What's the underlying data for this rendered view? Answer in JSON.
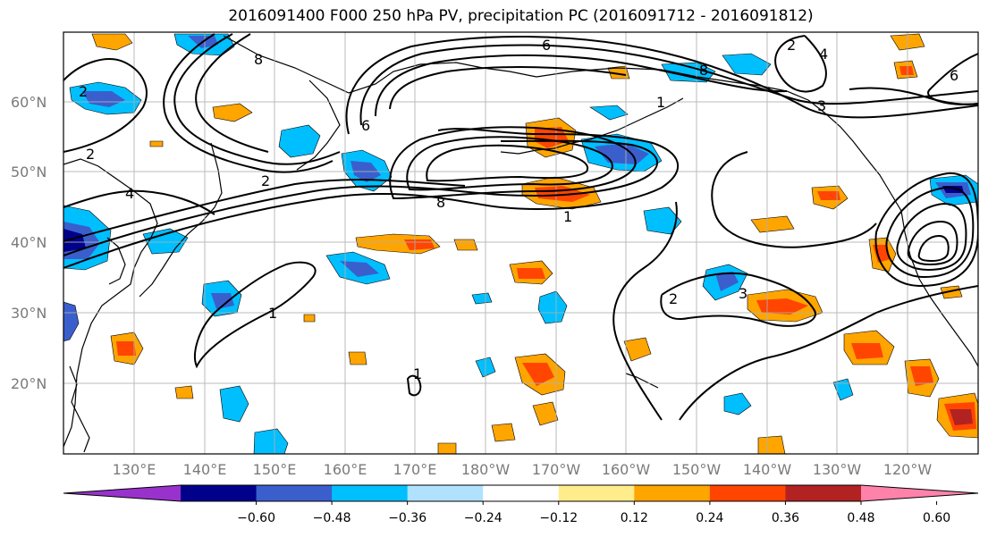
{
  "title": "2016091400 F000 250 hPa PV, precipitation PC (2016091712 - 2016091812)",
  "latitude_labels": [
    "60°N",
    "50°N",
    "40°N",
    "30°N",
    "20°N"
  ],
  "longitude_labels": [
    "130°E",
    "140°E",
    "150°E",
    "160°E",
    "170°E",
    "180°W",
    "170°W",
    "160°W",
    "150°W",
    "140°W",
    "130°W",
    "120°W"
  ],
  "colorbar": {
    "tick_labels": [
      "−0.60",
      "−0.48",
      "−0.36",
      "−0.24",
      "−0.12",
      "0.12",
      "0.24",
      "0.36",
      "0.48",
      "0.60"
    ],
    "colors": [
      "#9932cc",
      "#00008b",
      "#3a5fcd",
      "#00bfff",
      "#b0e2ff",
      "#ffffff",
      "#ffec8b",
      "#ffa500",
      "#ff4500",
      "#b22222",
      "#ff82ab"
    ]
  },
  "contour_labels": [
    "8",
    "6",
    "4",
    "2",
    "1",
    "8",
    "3",
    "2",
    "1",
    "2",
    "2",
    "4",
    "8",
    "1",
    "6",
    "2",
    "3",
    "6",
    "1"
  ],
  "colors": {
    "land_coast": "#000000",
    "grid": "#b0b0b0",
    "contour": "#000000"
  }
}
